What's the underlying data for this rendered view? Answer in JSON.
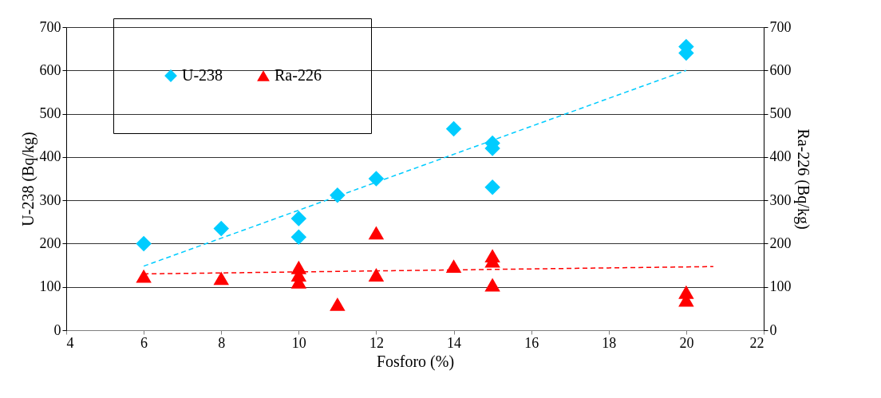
{
  "chart_data": {
    "type": "scatter",
    "xlabel": "Fosforo (%)",
    "ylabel": "U-238 (Bq/kg)",
    "y2label": "Ra-226 (Bq/kg)",
    "xlim": [
      4,
      22
    ],
    "xticks": [
      4,
      6,
      8,
      10,
      12,
      14,
      16,
      18,
      20,
      22
    ],
    "ylim": [
      0,
      700
    ],
    "yticks": [
      0,
      100,
      200,
      300,
      400,
      500,
      600,
      700
    ],
    "y2lim": [
      0,
      700
    ],
    "y2ticks": [
      0,
      100,
      200,
      300,
      400,
      500,
      600,
      700
    ],
    "grid": "y",
    "legend": "top left",
    "series": [
      {
        "name": "U-238",
        "color": "#00ccff",
        "marker": "diamond",
        "x": [
          6,
          8,
          10,
          10,
          11,
          12,
          14,
          15,
          15,
          15,
          20,
          20
        ],
        "values": [
          200,
          235,
          258,
          215,
          312,
          350,
          465,
          432,
          420,
          330,
          655,
          640
        ]
      },
      {
        "name": "Ra-226",
        "color": "#ff0000",
        "marker": "triangle",
        "axis": "y2",
        "x": [
          6,
          8,
          10,
          10,
          10,
          11,
          12,
          12,
          14,
          15,
          15,
          15,
          20,
          20
        ],
        "values": [
          125,
          120,
          145,
          128,
          112,
          60,
          225,
          128,
          148,
          172,
          160,
          105,
          88,
          70
        ]
      },
      {
        "type": "line",
        "color": "#00ccff",
        "line_style": "dashed",
        "marker": "none",
        "x": [
          6,
          20
        ],
        "values": [
          148,
          600
        ]
      },
      {
        "type": "line",
        "color": "#ff0000",
        "line_style": "dashed",
        "marker": "none",
        "axis": "y2",
        "x": [
          6,
          20.7
        ],
        "values": [
          130,
          147
        ]
      }
    ]
  }
}
